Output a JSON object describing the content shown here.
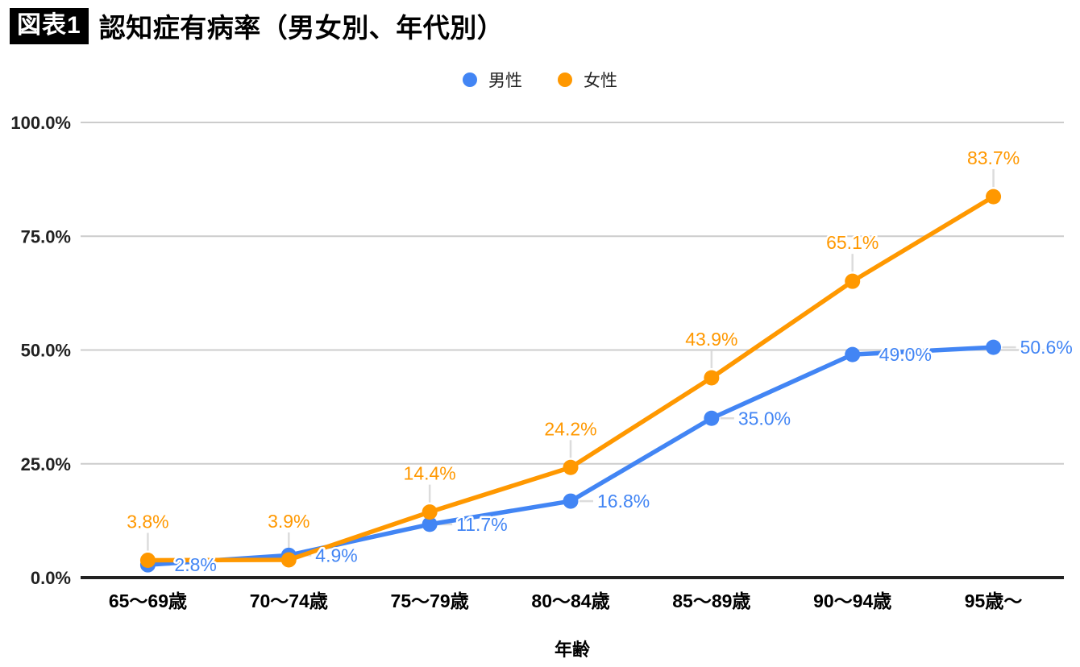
{
  "header": {
    "badge": "図表1",
    "title": "認知症有病率（男女別、年代別）"
  },
  "chart_data": {
    "type": "line",
    "title": "認知症有病率（男女別、年代別）",
    "categories": [
      "65〜69歳",
      "70〜74歳",
      "75〜79歳",
      "80〜84歳",
      "85〜89歳",
      "90〜94歳",
      "95歳〜"
    ],
    "series": [
      {
        "name": "男性",
        "color": "#4285f4",
        "values": [
          2.8,
          4.9,
          11.7,
          16.8,
          35.0,
          49.0,
          50.6
        ],
        "labels": [
          "2.8%",
          "4.9%",
          "11.7%",
          "16.8%",
          "35.0%",
          "49.0%",
          "50.6%"
        ],
        "label_position": "right"
      },
      {
        "name": "女性",
        "color": "#ff9800",
        "values": [
          3.8,
          3.9,
          14.4,
          24.2,
          43.9,
          65.1,
          83.7
        ],
        "labels": [
          "3.8%",
          "3.9%",
          "14.4%",
          "24.2%",
          "43.9%",
          "65.1%",
          "83.7%"
        ],
        "label_position": "above"
      }
    ],
    "xlabel": "年齢",
    "ylabel": "",
    "ylim": [
      0,
      100
    ],
    "y_ticks": [
      {
        "value": 0,
        "label": "0.0%"
      },
      {
        "value": 25,
        "label": "25.0%"
      },
      {
        "value": 50,
        "label": "50.0%"
      },
      {
        "value": 75,
        "label": "75.0%"
      },
      {
        "value": 100,
        "label": "100.0%"
      }
    ],
    "grid": true,
    "legend_position": "top-center"
  },
  "colors": {
    "male_series": "#4285f4",
    "female_series": "#ff9800",
    "gridline": "#cccccc",
    "axis_line": "#212121",
    "label_connector": "#dcdcdc",
    "tick_text": "#212121"
  }
}
